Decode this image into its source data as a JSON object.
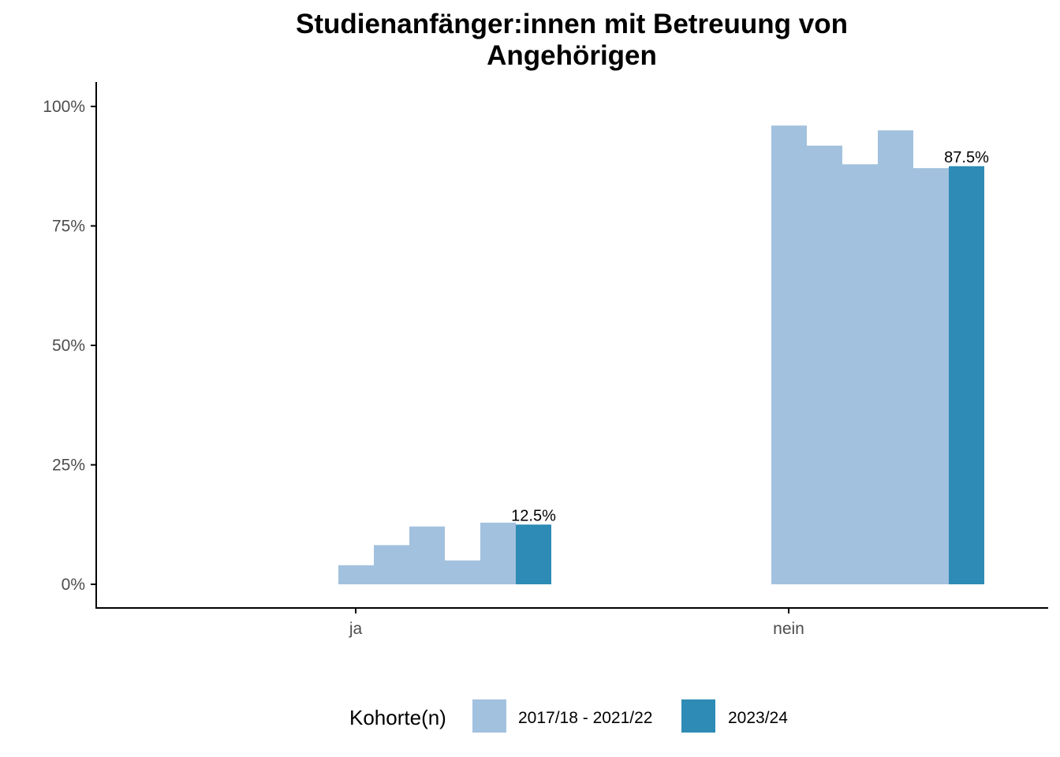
{
  "chart_data": {
    "type": "bar",
    "title_lines": [
      "Studienanfänger:innen mit Betreuung von",
      "Angehörigen"
    ],
    "categories": [
      "ja",
      "nein"
    ],
    "ylim": [
      0,
      1
    ],
    "yticks": [
      {
        "value": 0,
        "label": "0%"
      },
      {
        "value": 0.25,
        "label": "25%"
      },
      {
        "value": 0.5,
        "label": "50%"
      },
      {
        "value": 0.75,
        "label": "75%"
      },
      {
        "value": 1.0,
        "label": "100%"
      }
    ],
    "historical_bars": {
      "series_name": "2017/18 - 2021/22",
      "color": "#a2c1de",
      "values": {
        "ja": [
          0.04,
          0.082,
          0.121,
          0.05,
          0.129
        ],
        "nein": [
          0.96,
          0.918,
          0.879,
          0.95,
          0.871
        ]
      }
    },
    "current_bar": {
      "series_name": "2023/24",
      "color": "#2e8bb5",
      "values": {
        "ja": 0.125,
        "nein": 0.875
      },
      "labels": {
        "ja": "12.5%",
        "nein": "87.5%"
      }
    },
    "legend": {
      "title": "Kohorte(n)",
      "position": "bottom",
      "items": [
        {
          "label": "2017/18 - 2021/22",
          "color": "#a2c1de"
        },
        {
          "label": "2023/24",
          "color": "#2e8bb5"
        }
      ]
    },
    "xlabel": "",
    "ylabel": "",
    "grid": false
  }
}
